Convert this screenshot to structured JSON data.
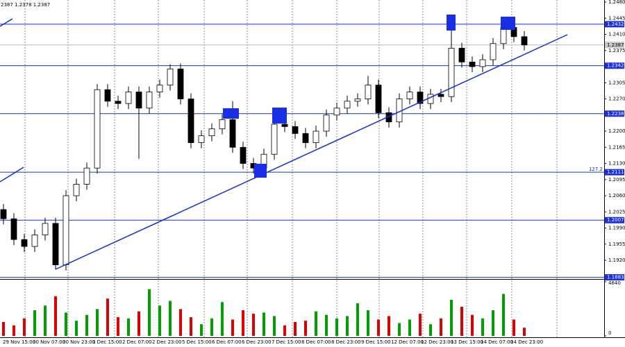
{
  "chart_data": {
    "type": "candlestick",
    "header": "2387 1.2378 1.2387",
    "open": [
      1.203,
      1.201,
      1.1965,
      1.195,
      1.1975,
      1.2,
      1.191,
      1.206,
      1.2085,
      1.212,
      1.229,
      1.2265,
      1.226,
      1.2285,
      1.225,
      1.2285,
      1.23,
      1.2335,
      1.227,
      1.2175,
      1.219,
      1.2205,
      1.2225,
      1.2165,
      1.213,
      1.212,
      1.215,
      1.2215,
      1.221,
      1.2195,
      1.2175,
      1.22,
      1.2235,
      1.225,
      1.2265,
      1.227,
      1.23,
      1.224,
      1.222,
      1.227,
      1.2285,
      1.226,
      1.228,
      1.2275,
      1.238,
      1.235,
      1.234,
      1.2355,
      1.239,
      1.2425,
      1.2405
    ],
    "high": [
      1.2042,
      1.2022,
      1.1977,
      1.1987,
      1.2012,
      1.2012,
      1.2072,
      1.2097,
      1.2132,
      1.2302,
      1.2302,
      1.2277,
      1.2297,
      1.2297,
      1.2297,
      1.2312,
      1.2345,
      1.2347,
      1.2282,
      1.2202,
      1.2217,
      1.2237,
      1.2265,
      1.2177,
      1.2142,
      1.2162,
      1.2227,
      1.2227,
      1.2222,
      1.2207,
      1.2212,
      1.2247,
      1.2262,
      1.2277,
      1.2282,
      1.232,
      1.2312,
      1.2252,
      1.2282,
      1.2297,
      1.2297,
      1.2292,
      1.2292,
      1.244,
      1.2392,
      1.2362,
      1.2367,
      1.2402,
      1.244,
      1.2437,
      1.2417
    ],
    "low": [
      1.1998,
      1.1953,
      1.1938,
      1.1938,
      1.1963,
      1.19,
      1.1898,
      1.2048,
      1.2073,
      1.2108,
      1.2253,
      1.2248,
      1.2248,
      1.214,
      1.2238,
      1.2273,
      1.2288,
      1.2258,
      1.2163,
      1.2163,
      1.2178,
      1.2193,
      1.2153,
      1.2118,
      1.2108,
      1.2108,
      1.2138,
      1.2198,
      1.2183,
      1.2163,
      1.2163,
      1.2188,
      1.2223,
      1.2238,
      1.2253,
      1.2258,
      1.2228,
      1.2208,
      1.2208,
      1.2258,
      1.2248,
      1.2248,
      1.2263,
      1.2263,
      1.2338,
      1.2328,
      1.2328,
      1.2343,
      1.2378,
      1.2393,
      1.2375
    ],
    "close": [
      1.201,
      1.1965,
      1.195,
      1.1975,
      1.2,
      1.191,
      1.206,
      1.2085,
      1.212,
      1.229,
      1.2265,
      1.226,
      1.2285,
      1.225,
      1.2285,
      1.23,
      1.2335,
      1.227,
      1.2175,
      1.219,
      1.2205,
      1.2225,
      1.2165,
      1.213,
      1.212,
      1.215,
      1.2215,
      1.221,
      1.2195,
      1.2175,
      1.22,
      1.2235,
      1.225,
      1.2265,
      1.227,
      1.23,
      1.224,
      1.222,
      1.227,
      1.2285,
      1.226,
      1.228,
      1.2275,
      1.238,
      1.235,
      1.234,
      1.2355,
      1.239,
      1.2425,
      1.2405,
      1.2387
    ],
    "volume": [
      1200,
      900,
      1500,
      2200,
      2600,
      3400,
      2000,
      1300,
      1800,
      2300,
      3200,
      1600,
      1500,
      2100,
      4000,
      2600,
      3000,
      2300,
      1600,
      1000,
      1500,
      2900,
      1400,
      2200,
      1900,
      2000,
      1700,
      900,
      1200,
      1300,
      2100,
      1800,
      1500,
      1700,
      2800,
      2200,
      1400,
      1700,
      1100,
      1400,
      1900,
      1000,
      1500,
      3100,
      2500,
      1800,
      1500,
      2200,
      3600,
      1400,
      700
    ],
    "ylim": [
      1.188,
      1.248
    ],
    "yticks": [
      {
        "value": 1.248,
        "label": "1.2480"
      },
      {
        "value": 1.2445,
        "label": "1.2445"
      },
      {
        "value": 1.241,
        "label": "1.2410"
      },
      {
        "value": 1.2375,
        "label": "1.2375"
      },
      {
        "value": 1.2305,
        "label": "1.2305"
      },
      {
        "value": 1.227,
        "label": "1.2270"
      },
      {
        "value": 1.22,
        "label": "1.2200"
      },
      {
        "value": 1.2165,
        "label": "1.2165"
      },
      {
        "value": 1.213,
        "label": "1.2130"
      },
      {
        "value": 1.2095,
        "label": "1.2095"
      },
      {
        "value": 1.206,
        "label": "1.2060"
      },
      {
        "value": 1.2025,
        "label": "1.2025"
      },
      {
        "value": 1.199,
        "label": "1.1990"
      },
      {
        "value": 1.1955,
        "label": "1.1955"
      },
      {
        "value": 1.192,
        "label": "1.1920"
      }
    ],
    "levels": [
      {
        "value": 1.2432,
        "label": "1.2432"
      },
      {
        "value": 1.2342,
        "label": "1.2342"
      },
      {
        "value": 1.2238,
        "label": "1.2238"
      },
      {
        "value": 1.2111,
        "label": "1.2111"
      },
      {
        "value": 1.2007,
        "label": "1.2007"
      },
      {
        "value": 1.1883,
        "label": "1.1883"
      }
    ],
    "current_price": {
      "value": 1.2387,
      "label": "1.2387"
    },
    "level_annotation": "127.2",
    "volume_ylim": [
      0,
      4640
    ],
    "volume_yticks": [
      4640,
      0
    ],
    "x_labels": [
      "29 Nov 15:00",
      "30 Nov 07:00",
      "30 Nov 23:00",
      "1 Dec 15:00",
      "2 Dec 07:00",
      "2 Dec 23:00",
      "5 Dec 15:00",
      "6 Dec 07:00",
      "6 Dec 23:00",
      "7 Dec 15:00",
      "8 Dec 07:00",
      "8 Dec 23:00",
      "9 Dec 15:00",
      "12 Dec 07:00",
      "12 Dec 23:00",
      "13 Dec 15:00",
      "14 Dec 07:00",
      "14 Dec 23:00"
    ]
  }
}
